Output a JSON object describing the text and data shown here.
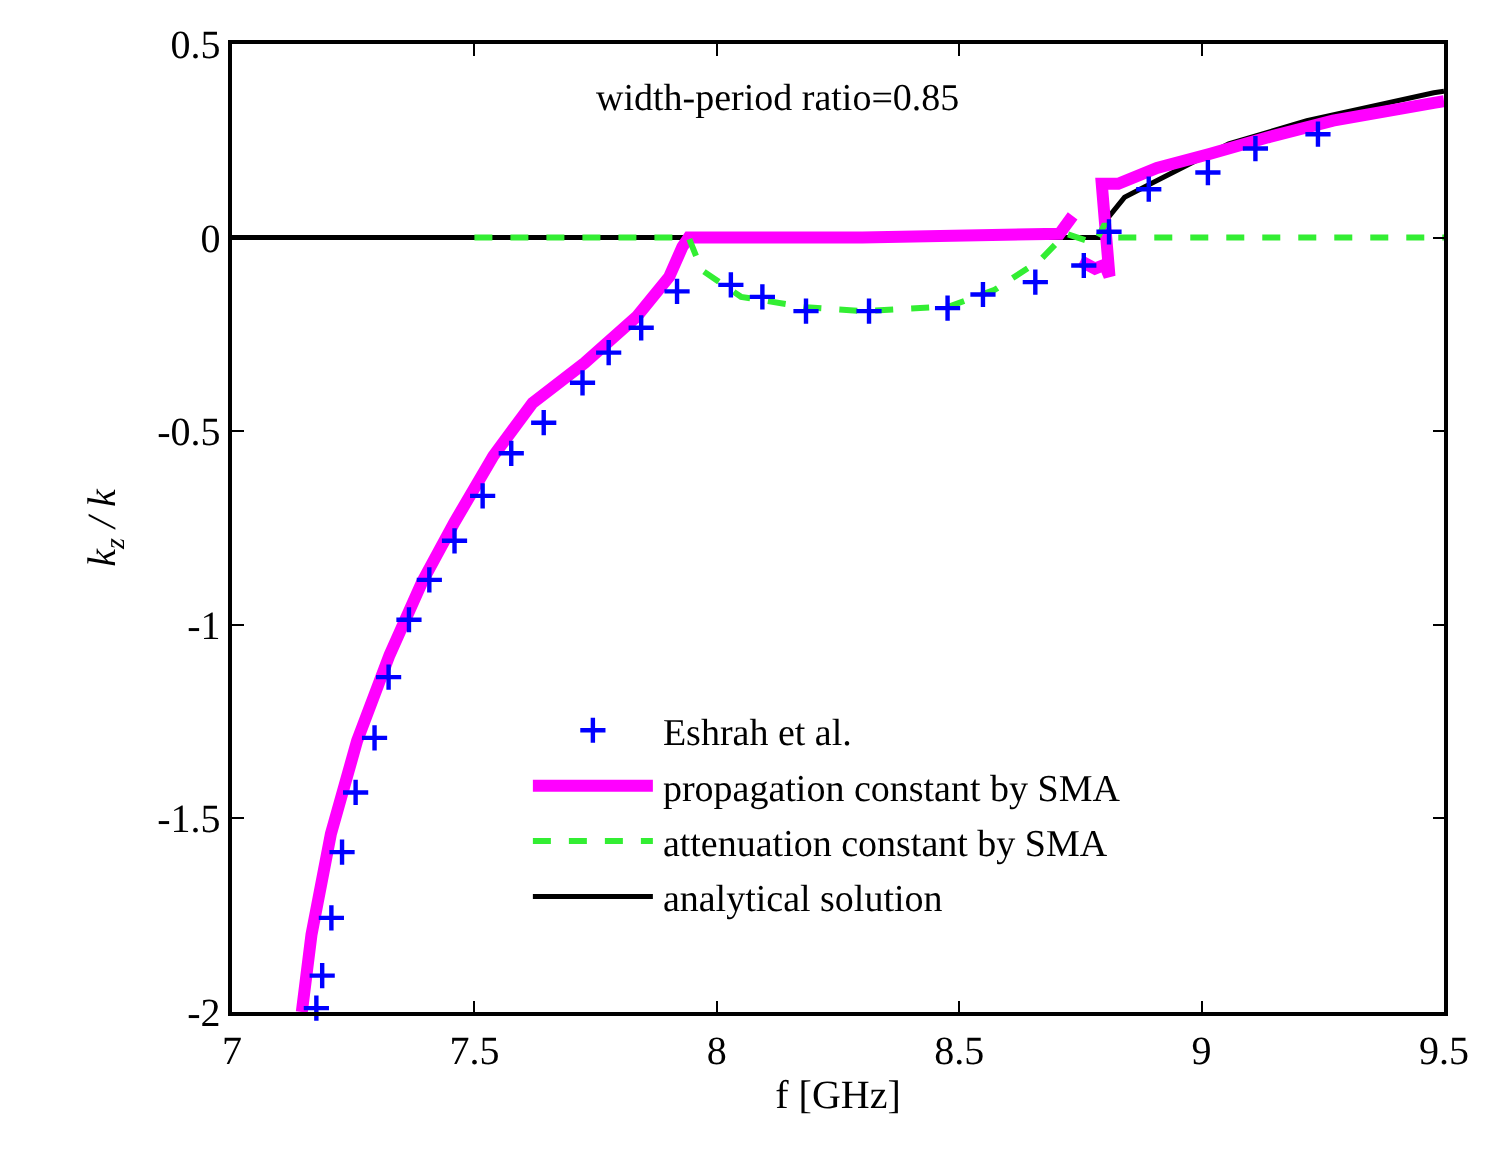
{
  "chart_data": {
    "type": "line",
    "xlabel": "f [GHz]",
    "ylabel": "k$_{z}$ / k",
    "annotations": [
      "width-period ratio=0.85"
    ],
    "xlim": [
      7,
      9.5
    ],
    "xticks": [
      7,
      7.5,
      8,
      8.5,
      9,
      9.5
    ],
    "ylim": [
      -2,
      0.5
    ],
    "yticks": [
      -2,
      -1.5,
      -1,
      -0.5,
      0,
      0.5
    ],
    "legend": "bottom",
    "series": [
      {
        "name": "Eshrah et al.",
        "type": "scatter",
        "marker": "cross",
        "color": "#0000ff",
        "x": [
          7.174,
          7.186,
          7.205,
          7.227,
          7.255,
          7.294,
          7.323,
          7.365,
          7.407,
          7.459,
          7.517,
          7.576,
          7.643,
          7.723,
          7.777,
          7.844,
          7.918,
          8.029,
          8.094,
          8.184,
          8.314,
          8.476,
          8.549,
          8.657,
          8.757,
          8.809,
          8.891,
          9.013,
          9.111,
          9.24
        ],
        "values": [
          -1.99,
          -1.906,
          -1.757,
          -1.587,
          -1.433,
          -1.292,
          -1.135,
          -0.987,
          -0.884,
          -0.783,
          -0.667,
          -0.557,
          -0.478,
          -0.375,
          -0.297,
          -0.233,
          -0.139,
          -0.122,
          -0.153,
          -0.19,
          -0.19,
          -0.182,
          -0.147,
          -0.115,
          -0.072,
          0.015,
          0.125,
          0.168,
          0.23,
          0.267
        ]
      },
      {
        "name": "propagation constant by SMA",
        "line_style": "solid",
        "color": "#ff00ff",
        "x": [
          7.144,
          7.164,
          7.204,
          7.258,
          7.325,
          7.392,
          7.459,
          7.539,
          7.62,
          7.727,
          7.835,
          7.902,
          7.929,
          7.942,
          8.3,
          8.707,
          8.734,
          8.74,
          8.75,
          8.78,
          8.8,
          8.81,
          8.794,
          8.828,
          8.908,
          9.016,
          9.137,
          9.271,
          9.479,
          9.5
        ],
        "values": [
          -2.0,
          -1.8,
          -1.54,
          -1.3,
          -1.078,
          -0.89,
          -0.735,
          -0.564,
          -0.427,
          -0.324,
          -0.204,
          -0.101,
          -0.024,
          0,
          0,
          0.01,
          0.056,
          null,
          -0.06,
          -0.08,
          -0.07,
          -0.1,
          0.139,
          0.139,
          0.18,
          0.216,
          0.259,
          0.302,
          0.348,
          0.352
        ]
      },
      {
        "name": "attenuation constant by SMA",
        "line_style": "dashed",
        "color": "#33ee33",
        "x": [
          7.5,
          7.942,
          7.969,
          8.05,
          8.184,
          8.304,
          8.479,
          8.573,
          8.667,
          8.72,
          8.78,
          8.8,
          8.814,
          9.5
        ],
        "values": [
          0,
          0,
          -0.084,
          -0.153,
          -0.18,
          -0.19,
          -0.178,
          -0.135,
          -0.058,
          0.01,
          -0.015,
          0.035,
          0,
          0
        ]
      },
      {
        "name": "analytical solution",
        "line_style": "solid",
        "color": "#000000",
        "x": [
          7.0,
          8.8,
          8.808,
          8.841,
          8.895,
          9.056,
          9.217,
          9.479,
          9.5
        ],
        "values": [
          0,
          0,
          0.053,
          0.104,
          0.139,
          0.242,
          0.302,
          0.374,
          0.378
        ]
      }
    ]
  }
}
